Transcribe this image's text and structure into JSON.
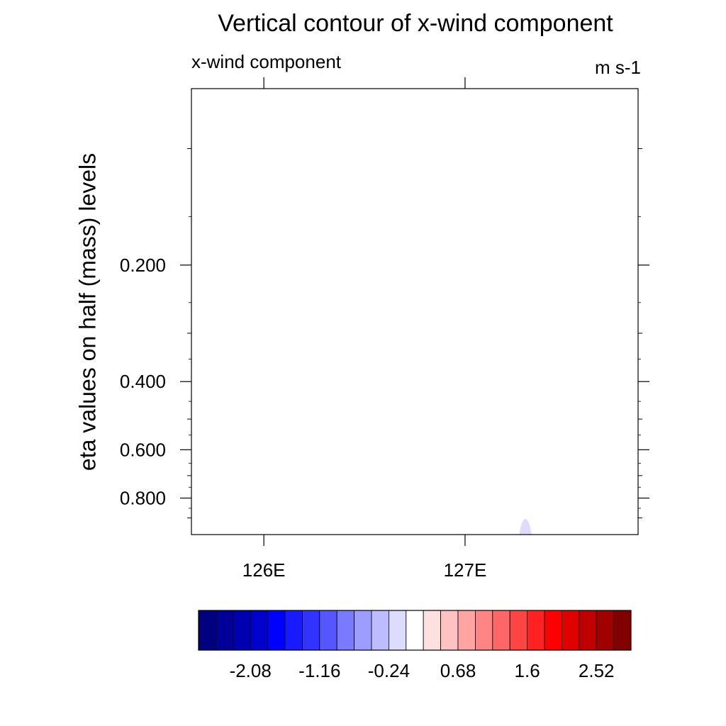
{
  "chart_data": {
    "type": "heatmap",
    "title": "Vertical contour of x-wind component",
    "left_string": "x-wind component",
    "right_string": "m s-1",
    "ylabel": "eta values on half (mass) levels",
    "xlabel": "",
    "x_ticks": [
      {
        "value": 125.75,
        "label": "126E"
      },
      {
        "value": 126.75,
        "label": "127E"
      }
    ],
    "xlim": [
      125.39,
      127.61
    ],
    "y_ticks": [
      {
        "value": 0.2,
        "label": "0.200"
      },
      {
        "value": 0.4,
        "label": "0.400"
      },
      {
        "value": 0.6,
        "label": "0.600"
      },
      {
        "value": 0.8,
        "label": "0.800"
      }
    ],
    "y_scale": "log",
    "y_inverted": true,
    "ylim": [
      0.07,
      0.994
    ],
    "contour_levels": [
      -2.54,
      -2.31,
      -2.08,
      -1.85,
      -1.62,
      -1.39,
      -1.16,
      -0.93,
      -0.7,
      -0.47,
      -0.24,
      -0.01,
      0.22,
      0.45,
      0.68,
      0.91,
      1.14,
      1.37,
      1.6,
      1.83,
      2.06,
      2.29,
      2.52,
      2.75
    ],
    "colorbar": {
      "labels": [
        "-2.08",
        "-1.16",
        "-0.24",
        "0.68",
        "1.6",
        "2.52"
      ],
      "colors": [
        "#000080",
        "#000099",
        "#0000b3",
        "#0000cc",
        "#0000ff",
        "#1a1aff",
        "#3333ff",
        "#5656ff",
        "#7a7aff",
        "#9d9dff",
        "#bcbcff",
        "#dcdcff",
        "#ffffff",
        "#ffe0e0",
        "#ffc2c2",
        "#ffa3a3",
        "#ff8585",
        "#ff6666",
        "#ff4444",
        "#ff2222",
        "#ff0000",
        "#e00000",
        "#c00000",
        "#a00000",
        "#800000"
      ],
      "placement": "bottom"
    },
    "features": [
      {
        "type": "shaded-region",
        "level_range": [
          -0.24,
          -0.01
        ],
        "color": "#dcdcff",
        "x_center": 127.05,
        "x_halfwidth": 0.03,
        "y_top": 0.905
      }
    ],
    "grid": false
  }
}
